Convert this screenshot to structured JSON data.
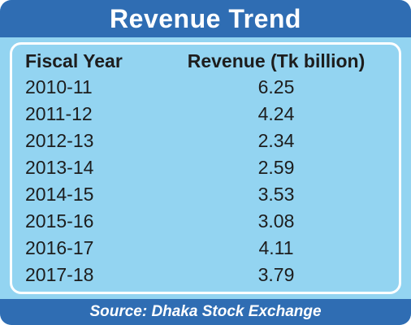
{
  "header": {
    "title": "Revenue Trend"
  },
  "table": {
    "columns": [
      "Fiscal Year",
      "Revenue (Tk billion)"
    ],
    "rows": [
      [
        "2010-11",
        6.25
      ],
      [
        "2011-12",
        4.24
      ],
      [
        "2012-13",
        2.34
      ],
      [
        "2013-14",
        2.59
      ],
      [
        "2014-15",
        3.53
      ],
      [
        "2015-16",
        3.08
      ],
      [
        "2016-17",
        4.11
      ],
      [
        "2017-18",
        3.79
      ]
    ]
  },
  "footer": {
    "source": "Source: Dhaka Stock Exchange"
  }
}
